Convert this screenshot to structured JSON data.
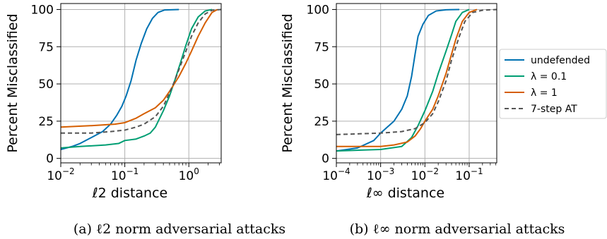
{
  "chart_data": [
    {
      "type": "line",
      "panel": "a",
      "caption": "(a) ℓ2 norm adversarial attacks",
      "xlabel": "ℓ2 distance",
      "ylabel": "Percent Misclassified",
      "xscale": "log",
      "xlim": [
        0.01,
        3.2
      ],
      "ylim": [
        -3,
        104
      ],
      "xticks": [
        {
          "v": 0.01,
          "b": "10",
          "e": "−2"
        },
        {
          "v": 0.1,
          "b": "10",
          "e": "−1"
        },
        {
          "v": 1,
          "b": "10",
          "e": "0"
        }
      ],
      "yticks": [
        0,
        25,
        50,
        75,
        100
      ],
      "grid": true,
      "series": [
        {
          "name": "undefended",
          "color": "#0072B2",
          "dash": "",
          "points": [
            [
              0.01,
              6
            ],
            [
              0.015,
              8
            ],
            [
              0.02,
              10
            ],
            [
              0.03,
              14
            ],
            [
              0.045,
              18
            ],
            [
              0.06,
              23
            ],
            [
              0.075,
              29
            ],
            [
              0.09,
              35
            ],
            [
              0.105,
              42
            ],
            [
              0.125,
              52
            ],
            [
              0.15,
              66
            ],
            [
              0.18,
              77
            ],
            [
              0.22,
              87
            ],
            [
              0.27,
              94
            ],
            [
              0.33,
              98
            ],
            [
              0.42,
              99.7
            ],
            [
              0.7,
              100
            ]
          ]
        },
        {
          "name": "λ = 0.1",
          "color": "#009E73",
          "dash": "",
          "points": [
            [
              0.01,
              7
            ],
            [
              0.02,
              8
            ],
            [
              0.05,
              9
            ],
            [
              0.08,
              10
            ],
            [
              0.1,
              12
            ],
            [
              0.15,
              13
            ],
            [
              0.2,
              15
            ],
            [
              0.25,
              17
            ],
            [
              0.3,
              21
            ],
            [
              0.4,
              32
            ],
            [
              0.5,
              42
            ],
            [
              0.6,
              52
            ],
            [
              0.75,
              65
            ],
            [
              0.9,
              76
            ],
            [
              1.1,
              87
            ],
            [
              1.4,
              95
            ],
            [
              1.8,
              99
            ],
            [
              2.3,
              100
            ]
          ]
        },
        {
          "name": "λ = 1",
          "color": "#D55E00",
          "dash": "",
          "points": [
            [
              0.01,
              21
            ],
            [
              0.03,
              22
            ],
            [
              0.07,
              23
            ],
            [
              0.1,
              24
            ],
            [
              0.15,
              27
            ],
            [
              0.2,
              30
            ],
            [
              0.3,
              34
            ],
            [
              0.4,
              39
            ],
            [
              0.5,
              45
            ],
            [
              0.7,
              55
            ],
            [
              0.9,
              64
            ],
            [
              1.1,
              72
            ],
            [
              1.4,
              82
            ],
            [
              1.8,
              91
            ],
            [
              2.3,
              98
            ],
            [
              2.8,
              100
            ]
          ]
        },
        {
          "name": "7-step AT",
          "color": "#555555",
          "dash": "6,4",
          "points": [
            [
              0.01,
              17
            ],
            [
              0.03,
              17
            ],
            [
              0.06,
              18
            ],
            [
              0.1,
              19
            ],
            [
              0.15,
              21
            ],
            [
              0.2,
              23
            ],
            [
              0.3,
              28
            ],
            [
              0.4,
              35
            ],
            [
              0.5,
              44
            ],
            [
              0.6,
              52
            ],
            [
              0.75,
              63
            ],
            [
              0.9,
              72
            ],
            [
              1.1,
              82
            ],
            [
              1.4,
              91
            ],
            [
              1.8,
              97
            ],
            [
              2.3,
              99.5
            ],
            [
              3.2,
              100
            ]
          ]
        }
      ]
    },
    {
      "type": "line",
      "panel": "b",
      "caption": "(b) ℓ∞ norm adversarial attacks",
      "xlabel": "ℓ∞ distance",
      "ylabel": "Percent Misclassified",
      "xscale": "log",
      "xlim": [
        0.0001,
        0.42
      ],
      "ylim": [
        -3,
        104
      ],
      "xticks": [
        {
          "v": 0.0001,
          "b": "10",
          "e": "−4"
        },
        {
          "v": 0.001,
          "b": "10",
          "e": "−3"
        },
        {
          "v": 0.01,
          "b": "10",
          "e": "−2"
        },
        {
          "v": 0.1,
          "b": "10",
          "e": "−1"
        }
      ],
      "yticks": [
        0,
        25,
        50,
        75,
        100
      ],
      "grid": true,
      "series": [
        {
          "name": "undefended",
          "color": "#0072B2",
          "dash": "",
          "points": [
            [
              0.0001,
              5
            ],
            [
              0.0003,
              7
            ],
            [
              0.0007,
              12
            ],
            [
              0.001,
              17
            ],
            [
              0.002,
              25
            ],
            [
              0.003,
              33
            ],
            [
              0.004,
              42
            ],
            [
              0.005,
              55
            ],
            [
              0.006,
              70
            ],
            [
              0.007,
              82
            ],
            [
              0.009,
              90
            ],
            [
              0.012,
              96
            ],
            [
              0.018,
              99
            ],
            [
              0.03,
              99.8
            ],
            [
              0.06,
              100
            ]
          ]
        },
        {
          "name": "λ = 0.1",
          "color": "#009E73",
          "dash": "",
          "points": [
            [
              0.0001,
              5
            ],
            [
              0.001,
              6
            ],
            [
              0.003,
              8
            ],
            [
              0.005,
              14
            ],
            [
              0.007,
              22
            ],
            [
              0.01,
              32
            ],
            [
              0.015,
              45
            ],
            [
              0.02,
              57
            ],
            [
              0.03,
              72
            ],
            [
              0.04,
              83
            ],
            [
              0.05,
              92
            ],
            [
              0.07,
              98
            ],
            [
              0.1,
              100
            ]
          ]
        },
        {
          "name": "λ = 1",
          "color": "#D55E00",
          "dash": "",
          "points": [
            [
              0.0001,
              8
            ],
            [
              0.001,
              8
            ],
            [
              0.002,
              9
            ],
            [
              0.004,
              11
            ],
            [
              0.006,
              15
            ],
            [
              0.008,
              20
            ],
            [
              0.01,
              25
            ],
            [
              0.015,
              33
            ],
            [
              0.02,
              42
            ],
            [
              0.03,
              57
            ],
            [
              0.04,
              70
            ],
            [
              0.05,
              80
            ],
            [
              0.07,
              92
            ],
            [
              0.1,
              98
            ],
            [
              0.15,
              100
            ]
          ]
        },
        {
          "name": "7-step AT",
          "color": "#555555",
          "dash": "6,4",
          "points": [
            [
              0.0001,
              16
            ],
            [
              0.001,
              17
            ],
            [
              0.003,
              18
            ],
            [
              0.006,
              20
            ],
            [
              0.01,
              24
            ],
            [
              0.015,
              30
            ],
            [
              0.02,
              38
            ],
            [
              0.03,
              52
            ],
            [
              0.04,
              66
            ],
            [
              0.06,
              82
            ],
            [
              0.08,
              92
            ],
            [
              0.12,
              98
            ],
            [
              0.2,
              99.5
            ],
            [
              0.42,
              100
            ]
          ]
        }
      ]
    }
  ],
  "legend": {
    "items": [
      {
        "label": "undefended",
        "color": "#0072B2",
        "dash": ""
      },
      {
        "label": "λ = 0.1",
        "color": "#009E73",
        "dash": ""
      },
      {
        "label": "λ = 1",
        "color": "#D55E00",
        "dash": ""
      },
      {
        "label": "7-step AT",
        "color": "#555555",
        "dash": "6,4"
      }
    ]
  }
}
